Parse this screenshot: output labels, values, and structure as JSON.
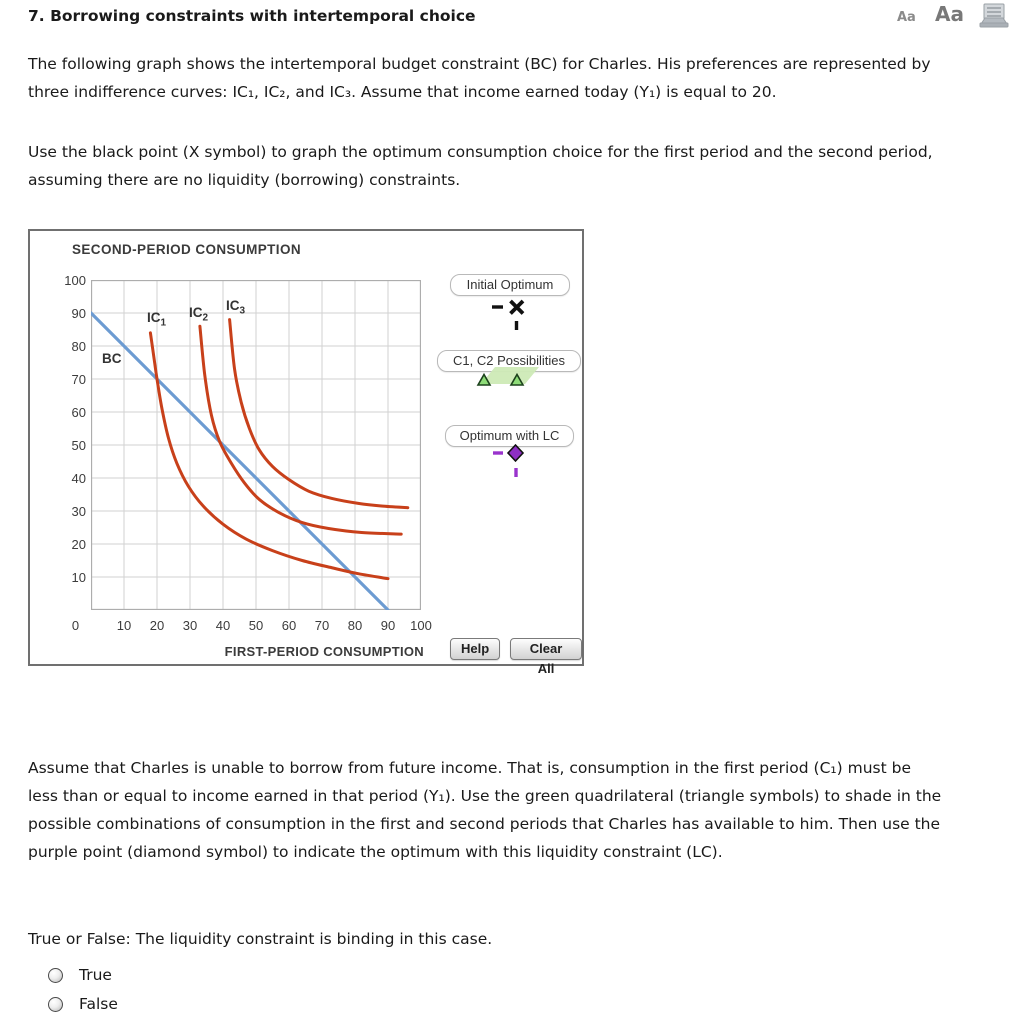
{
  "header": {
    "title": "7.  Borrowing constraints with intertemporal choice",
    "controls": {
      "small": "Aa",
      "large": "Aa"
    }
  },
  "paragraphs": {
    "p1": [
      "The following graph shows the intertemporal budget constraint (BC) for Charles. His preferences are represented by",
      "three indifference curves: IC₁, IC₂, and IC₃. Assume that income earned today (Y₁) is equal to 20."
    ],
    "p2": [
      "Use the black point (X symbol) to graph the optimum consumption choice for the first period and the second period,",
      "assuming there are no liquidity (borrowing) constraints."
    ],
    "p3": [
      "Assume that Charles is unable to borrow from future income. That is, consumption in the first period (C₁) must be",
      "less than or equal to income earned in that period (Y₁). Use the green quadrilateral (triangle symbols) to shade in the",
      "possible combinations of consumption in the first and second periods that Charles has available to him. Then use the",
      "purple point (diamond symbol) to indicate the optimum with this liquidity constraint (LC)."
    ]
  },
  "graph": {
    "panel_title": "SECOND-PERIOD CONSUMPTION",
    "x_axis_title": "FIRST-PERIOD CONSUMPTION",
    "x_ticks": [
      "0",
      "10",
      "20",
      "30",
      "40",
      "50",
      "60",
      "70",
      "80",
      "90",
      "100"
    ],
    "y_ticks": [
      "100",
      "90",
      "80",
      "70",
      "60",
      "50",
      "40",
      "30",
      "20",
      "10"
    ],
    "labels": {
      "bc": "BC",
      "ic1": {
        "base": "IC",
        "sub": "1"
      },
      "ic2": {
        "base": "IC",
        "sub": "2"
      },
      "ic3": {
        "base": "IC",
        "sub": "3"
      }
    },
    "legend": [
      {
        "label": "Initial Optimum",
        "symbol": "black-x-marker"
      },
      {
        "label": "C1, C2 Possibilities",
        "symbol": "green-quadrilateral-triangles"
      },
      {
        "label": "Optimum with LC",
        "symbol": "purple-diamond-marker"
      }
    ],
    "buttons": {
      "help": "Help",
      "clear": "Clear All"
    }
  },
  "question": {
    "prompt": "True or False: The liquidity constraint is binding in this case.",
    "options": [
      "True",
      "False"
    ]
  },
  "colors": {
    "bc_line": "#6C9BD2",
    "ic_curve": "#C8401A",
    "grid": "#D2D2D2",
    "plot_border": "#ADADAD",
    "legend_green_fill": "#CDEAB6",
    "legend_green_triangle": "#8EDC78",
    "legend_purple": "#9933CC",
    "marker_black": "#111111"
  },
  "chart_data": {
    "type": "line",
    "title": "SECOND-PERIOD CONSUMPTION",
    "xlabel": "FIRST-PERIOD CONSUMPTION",
    "ylabel": "",
    "xlim": [
      0,
      100
    ],
    "ylim": [
      0,
      100
    ],
    "tick_step": 10,
    "grid": true,
    "legend_position": "right",
    "series": [
      {
        "name": "BC",
        "color": "#6C9BD2",
        "width": 3.2,
        "points": [
          [
            0,
            90
          ],
          [
            90,
            0
          ]
        ]
      },
      {
        "name": "IC1",
        "color": "#C8401A",
        "width": 3,
        "points": [
          [
            18,
            84
          ],
          [
            19,
            77
          ],
          [
            20,
            70
          ],
          [
            21.5,
            61
          ],
          [
            23.5,
            52
          ],
          [
            26,
            44.5
          ],
          [
            29.5,
            37.5
          ],
          [
            34,
            31.5
          ],
          [
            40,
            26
          ],
          [
            47,
            21.5
          ],
          [
            55,
            18
          ],
          [
            64,
            15
          ],
          [
            73,
            12.8
          ],
          [
            81,
            11
          ],
          [
            90,
            9.5
          ]
        ]
      },
      {
        "name": "IC2",
        "color": "#C8401A",
        "width": 3,
        "points": [
          [
            33,
            86
          ],
          [
            34.5,
            71
          ],
          [
            36.5,
            59
          ],
          [
            39,
            51
          ],
          [
            42.5,
            44.5
          ],
          [
            46.5,
            38.5
          ],
          [
            51,
            33.5
          ],
          [
            57,
            29.5
          ],
          [
            64,
            26.5
          ],
          [
            72,
            24.7
          ],
          [
            82,
            23.5
          ],
          [
            94,
            23
          ]
        ]
      },
      {
        "name": "IC3",
        "color": "#C8401A",
        "width": 3,
        "points": [
          [
            42,
            88
          ],
          [
            43.5,
            73
          ],
          [
            45.5,
            63
          ],
          [
            48,
            55
          ],
          [
            51,
            48.5
          ],
          [
            55,
            43.5
          ],
          [
            60,
            39.5
          ],
          [
            66,
            36
          ],
          [
            73,
            33.8
          ],
          [
            81,
            32.3
          ],
          [
            88,
            31.5
          ],
          [
            96,
            31
          ]
        ]
      }
    ]
  }
}
